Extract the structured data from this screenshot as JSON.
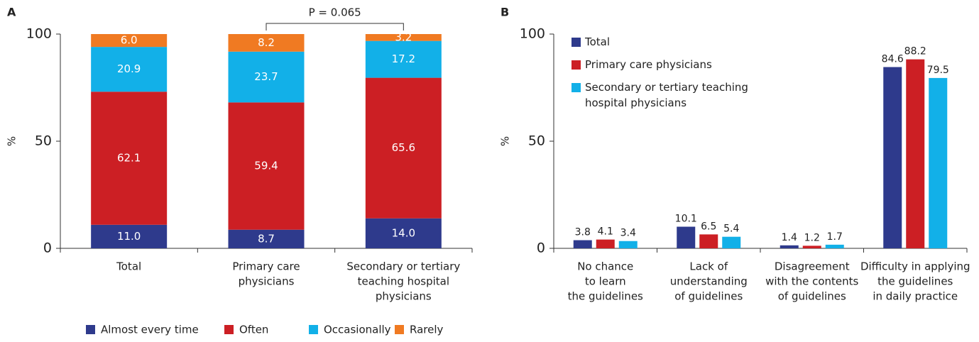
{
  "chart_data": [
    {
      "type": "stacked_bar",
      "panel": "A",
      "ylabel": "%",
      "annotation": "P = 0.065",
      "categories": [
        [
          "Total"
        ],
        [
          "Primary care",
          "physicians"
        ],
        [
          "Secondary or tertiary",
          "teaching hospital",
          "physicians"
        ]
      ],
      "series": [
        {
          "name": "Almost every time",
          "color": "#2e3a8c",
          "values": [
            11.0,
            8.7,
            14.0
          ],
          "value_labels": [
            "11.0",
            "8.7",
            "14.0"
          ]
        },
        {
          "name": "Often",
          "color": "#cc1f24",
          "values": [
            62.1,
            59.4,
            65.6
          ],
          "value_labels": [
            "62.1",
            "59.4",
            "65.6"
          ]
        },
        {
          "name": "Occasionally",
          "color": "#12b0e8",
          "values": [
            20.9,
            23.7,
            17.2
          ],
          "value_labels": [
            "20.9",
            "23.7",
            "17.2"
          ]
        },
        {
          "name": "Rarely",
          "color": "#f07a22",
          "values": [
            6.0,
            8.2,
            3.2
          ],
          "value_labels": [
            "6.0",
            "8.2",
            "3.2"
          ]
        }
      ],
      "ylim": [
        0,
        100
      ],
      "yticks": [
        0,
        50,
        100
      ],
      "legend": "bottom"
    },
    {
      "type": "grouped_bar",
      "panel": "B",
      "ylabel": "%",
      "categories": [
        [
          "No chance",
          "to learn",
          "the guidelines"
        ],
        [
          "Lack of",
          "understanding",
          "of guidelines"
        ],
        [
          "Disagreement",
          "with the contents",
          "of guidelines"
        ],
        [
          "Difficulty in applying",
          "the guidelines",
          "in daily practice"
        ]
      ],
      "series": [
        {
          "name": "Total",
          "color": "#2e3a8c",
          "values": [
            3.8,
            10.1,
            1.4,
            84.6
          ]
        },
        {
          "name": "Primary care physicians",
          "color": "#cc1f24",
          "values": [
            4.1,
            6.5,
            1.2,
            88.2
          ]
        },
        {
          "name": "Secondary or tertiary teaching hospital physicians",
          "color": "#12b0e8",
          "values": [
            3.4,
            5.4,
            1.7,
            79.5
          ]
        }
      ],
      "ylim": [
        0,
        100
      ],
      "yticks": [
        0,
        50,
        100
      ],
      "legend": "top-left"
    }
  ]
}
